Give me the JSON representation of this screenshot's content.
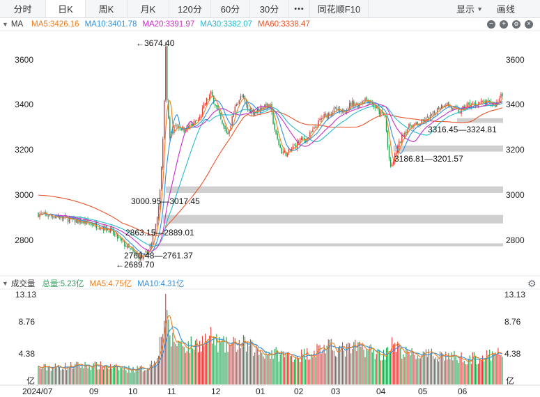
{
  "tabs": [
    {
      "label": "分时",
      "active": false
    },
    {
      "label": "日K",
      "active": true
    },
    {
      "label": "周K",
      "active": false
    },
    {
      "label": "月K",
      "active": false
    },
    {
      "label": "120分",
      "active": false
    },
    {
      "label": "60分",
      "active": false
    },
    {
      "label": "30分",
      "active": false
    },
    {
      "label": "•••",
      "active": false
    },
    {
      "label": "同花顺F10",
      "active": false
    }
  ],
  "toolbar": {
    "display_label": "显示",
    "draw_label": "画线"
  },
  "price_legend": {
    "indicator": "MA",
    "items": [
      {
        "text": "MA5:3426.16",
        "color": "#f07d1b"
      },
      {
        "text": "MA10:3401.78",
        "color": "#2f8fe0"
      },
      {
        "text": "MA20:3391.97",
        "color": "#c82ec8"
      },
      {
        "text": "MA30:3382.07",
        "color": "#27b9cf"
      },
      {
        "text": "MA60:3338.47",
        "color": "#e8542a"
      }
    ]
  },
  "volume_legend": {
    "title": "成交量",
    "items": [
      {
        "text": "总量:5.23亿",
        "color": "#2aa05a"
      },
      {
        "text": "MA5:4.75亿",
        "color": "#f07d1b"
      },
      {
        "text": "MA10:4.31亿",
        "color": "#2f8fe0"
      }
    ]
  },
  "price_axis": {
    "min": 2640,
    "max": 3700,
    "ticks": [
      "3600",
      "3400",
      "3200",
      "3000",
      "2800"
    ]
  },
  "volume_axis": {
    "max": 13.13,
    "ticks": [
      "13.13",
      "8.76",
      "4.38"
    ],
    "unit": "亿"
  },
  "x_axis": {
    "labels": [
      "2024/07",
      "09",
      "10",
      "11",
      "12",
      "01",
      "02",
      "03",
      "04",
      "05",
      "06"
    ]
  },
  "annotations": {
    "high": "3674.40",
    "low": "2689.70",
    "gap_2760": "2760.48—2761.37",
    "gap_2863": "2863.15—2889.01",
    "gap_3000": "3000.95—3017.45",
    "gap_3186": "3186.81—3201.57",
    "gap_3316": "3316.45—3324.81"
  },
  "colors": {
    "up": "#e03c3c",
    "down": "#1f9e4f",
    "gap": "#cfcfcf",
    "ma5": "#f07d1b",
    "ma10": "#2f8fe0",
    "ma20": "#c82ec8",
    "ma30": "#27b9cf",
    "ma60": "#e8542a"
  },
  "chart_data": [
    {
      "type": "candlestick",
      "title": "",
      "ylabel": "",
      "ylim": [
        2640,
        3700
      ],
      "x_ticks": [
        "2024/07",
        "09",
        "10",
        "11",
        "12",
        "01",
        "02",
        "03",
        "04",
        "05",
        "06"
      ],
      "y_ticks": [
        3600,
        3400,
        3200,
        3000,
        2800
      ],
      "series": [
        {
          "name": "MA5",
          "last": 3426.16
        },
        {
          "name": "MA10",
          "last": 3401.78
        },
        {
          "name": "MA20",
          "last": 3391.97
        },
        {
          "name": "MA30",
          "last": 3382.07
        },
        {
          "name": "MA60",
          "last": 3338.47
        }
      ],
      "high": 3674.4,
      "low": 2689.7,
      "price_path": [
        [
          0,
          2900
        ],
        [
          12,
          2890
        ],
        [
          25,
          2870
        ],
        [
          38,
          2855
        ],
        [
          50,
          2830
        ],
        [
          58,
          2780
        ],
        [
          68,
          2720
        ],
        [
          74,
          2700
        ],
        [
          80,
          2760
        ],
        [
          84,
          2890
        ],
        [
          86,
          3000
        ],
        [
          88,
          3250
        ],
        [
          89,
          3400
        ],
        [
          90,
          3660
        ],
        [
          91,
          3400
        ],
        [
          93,
          3250
        ],
        [
          97,
          3300
        ],
        [
          103,
          3280
        ],
        [
          109,
          3300
        ],
        [
          114,
          3330
        ],
        [
          118,
          3400
        ],
        [
          122,
          3440
        ],
        [
          126,
          3380
        ],
        [
          130,
          3300
        ],
        [
          134,
          3260
        ],
        [
          137,
          3330
        ],
        [
          140,
          3400
        ],
        [
          144,
          3430
        ],
        [
          148,
          3370
        ],
        [
          152,
          3360
        ],
        [
          156,
          3370
        ],
        [
          160,
          3390
        ],
        [
          164,
          3380
        ],
        [
          168,
          3250
        ],
        [
          172,
          3180
        ],
        [
          176,
          3170
        ],
        [
          180,
          3200
        ],
        [
          185,
          3230
        ],
        [
          190,
          3240
        ],
        [
          195,
          3280
        ],
        [
          200,
          3330
        ],
        [
          205,
          3350
        ],
        [
          210,
          3370
        ],
        [
          214,
          3350
        ],
        [
          218,
          3380
        ],
        [
          222,
          3400
        ],
        [
          226,
          3390
        ],
        [
          230,
          3420
        ],
        [
          234,
          3410
        ],
        [
          238,
          3380
        ],
        [
          242,
          3350
        ],
        [
          245,
          3340
        ],
        [
          247,
          3200
        ],
        [
          249,
          3100
        ],
        [
          251,
          3140
        ],
        [
          254,
          3200
        ],
        [
          258,
          3260
        ],
        [
          263,
          3300
        ],
        [
          268,
          3300
        ],
        [
          273,
          3320
        ],
        [
          278,
          3340
        ],
        [
          283,
          3380
        ],
        [
          288,
          3400
        ],
        [
          293,
          3370
        ],
        [
          298,
          3360
        ],
        [
          303,
          3390
        ],
        [
          308,
          3390
        ],
        [
          313,
          3400
        ],
        [
          318,
          3400
        ],
        [
          323,
          3390
        ],
        [
          326,
          3420
        ],
        [
          327,
          3450
        ],
        [
          328,
          3440
        ]
      ],
      "gaps": [
        [
          2760.48,
          2761.37
        ],
        [
          2863.15,
          2889.01
        ],
        [
          3000.95,
          3017.45
        ],
        [
          3186.81,
          3201.57
        ],
        [
          3316.45,
          3324.81
        ]
      ]
    },
    {
      "type": "bar",
      "title": "",
      "ylabel": "亿",
      "ylim": [
        0,
        13.13
      ],
      "y_ticks": [
        13.13,
        8.76,
        4.38
      ],
      "series": [
        {
          "name": "总量",
          "last": 5.23
        },
        {
          "name": "MA5",
          "last": 4.75
        },
        {
          "name": "MA10",
          "last": 4.31
        }
      ],
      "volume_path": [
        [
          0,
          2.6
        ],
        [
          15,
          2.8
        ],
        [
          30,
          3.0
        ],
        [
          45,
          2.9
        ],
        [
          55,
          2.6
        ],
        [
          65,
          2.4
        ],
        [
          75,
          2.5
        ],
        [
          82,
          3.6
        ],
        [
          86,
          6.5
        ],
        [
          88,
          9.0
        ],
        [
          90,
          13.13
        ],
        [
          91,
          9.5
        ],
        [
          94,
          7.0
        ],
        [
          100,
          6.5
        ],
        [
          106,
          6.0
        ],
        [
          112,
          6.4
        ],
        [
          118,
          7.0
        ],
        [
          122,
          7.3
        ],
        [
          126,
          6.6
        ],
        [
          132,
          6.0
        ],
        [
          138,
          6.2
        ],
        [
          144,
          6.4
        ],
        [
          150,
          5.8
        ],
        [
          156,
          5.2
        ],
        [
          162,
          5.0
        ],
        [
          168,
          4.8
        ],
        [
          174,
          4.6
        ],
        [
          180,
          4.5
        ],
        [
          186,
          4.6
        ],
        [
          192,
          5.0
        ],
        [
          198,
          5.6
        ],
        [
          204,
          5.8
        ],
        [
          210,
          5.7
        ],
        [
          216,
          5.4
        ],
        [
          222,
          5.6
        ],
        [
          228,
          5.9
        ],
        [
          234,
          5.4
        ],
        [
          240,
          4.9
        ],
        [
          244,
          4.6
        ],
        [
          247,
          6.0
        ],
        [
          250,
          6.2
        ],
        [
          254,
          5.6
        ],
        [
          258,
          5.0
        ],
        [
          264,
          4.7
        ],
        [
          270,
          4.6
        ],
        [
          276,
          4.5
        ],
        [
          282,
          4.7
        ],
        [
          288,
          4.6
        ],
        [
          294,
          4.3
        ],
        [
          300,
          4.2
        ],
        [
          306,
          4.1
        ],
        [
          312,
          4.2
        ],
        [
          318,
          4.4
        ],
        [
          323,
          4.5
        ],
        [
          326,
          4.9
        ],
        [
          328,
          5.23
        ]
      ]
    }
  ]
}
